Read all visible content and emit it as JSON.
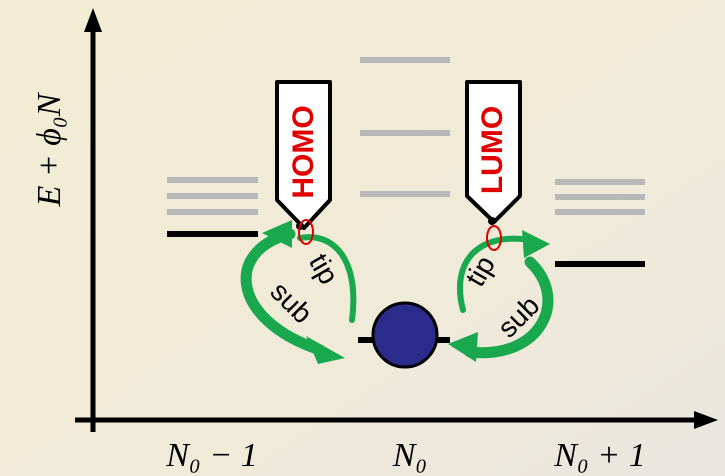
{
  "y_axis_label": "E + ϕ₀N",
  "x_labels": [
    "N₀ − 1",
    "N₀",
    "N₀ + 1"
  ],
  "tips": [
    {
      "label": "HOMO"
    },
    {
      "label": "LUMO"
    }
  ],
  "transitions": [
    {
      "tip": "tip",
      "substrate": "sub"
    },
    {
      "tip": "tip",
      "substrate": "sub"
    }
  ]
}
